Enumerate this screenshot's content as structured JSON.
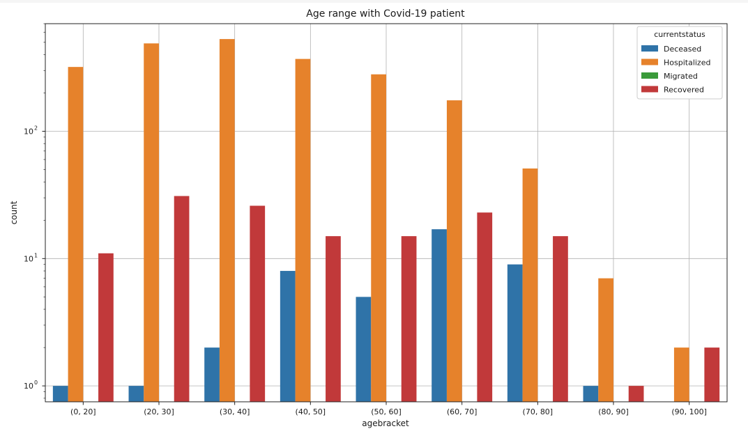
{
  "chart_data": {
    "type": "bar",
    "title": "Age range with Covid-19 patient",
    "xlabel": "agebracket",
    "ylabel": "count",
    "yscale": "log",
    "ylim": [
      0.75,
      700
    ],
    "grid": true,
    "y_ticks": [
      {
        "value": 1,
        "base": "10",
        "exp": "0"
      },
      {
        "value": 10,
        "base": "10",
        "exp": "1"
      },
      {
        "value": 100,
        "base": "10",
        "exp": "2"
      }
    ],
    "categories": [
      "(0, 20]",
      "(20, 30]",
      "(30, 40]",
      "(40, 50]",
      "(50, 60]",
      "(60, 70]",
      "(70, 80]",
      "(80, 90]",
      "(90, 100]"
    ],
    "legend": {
      "title": "currentstatus",
      "position": "top-right"
    },
    "series": [
      {
        "name": "Deceased",
        "color": "#2f73a8",
        "values": [
          1,
          1,
          2,
          8,
          5,
          17,
          9,
          1,
          null
        ]
      },
      {
        "name": "Hospitalized",
        "color": "#e6822b",
        "values": [
          320,
          490,
          530,
          370,
          280,
          175,
          51,
          7,
          2
        ]
      },
      {
        "name": "Migrated",
        "color": "#3a9a3a",
        "values": [
          null,
          null,
          null,
          null,
          null,
          null,
          null,
          null,
          null
        ]
      },
      {
        "name": "Recovered",
        "color": "#c1393a",
        "values": [
          11,
          31,
          26,
          15,
          15,
          23,
          15,
          1,
          2
        ]
      }
    ]
  }
}
